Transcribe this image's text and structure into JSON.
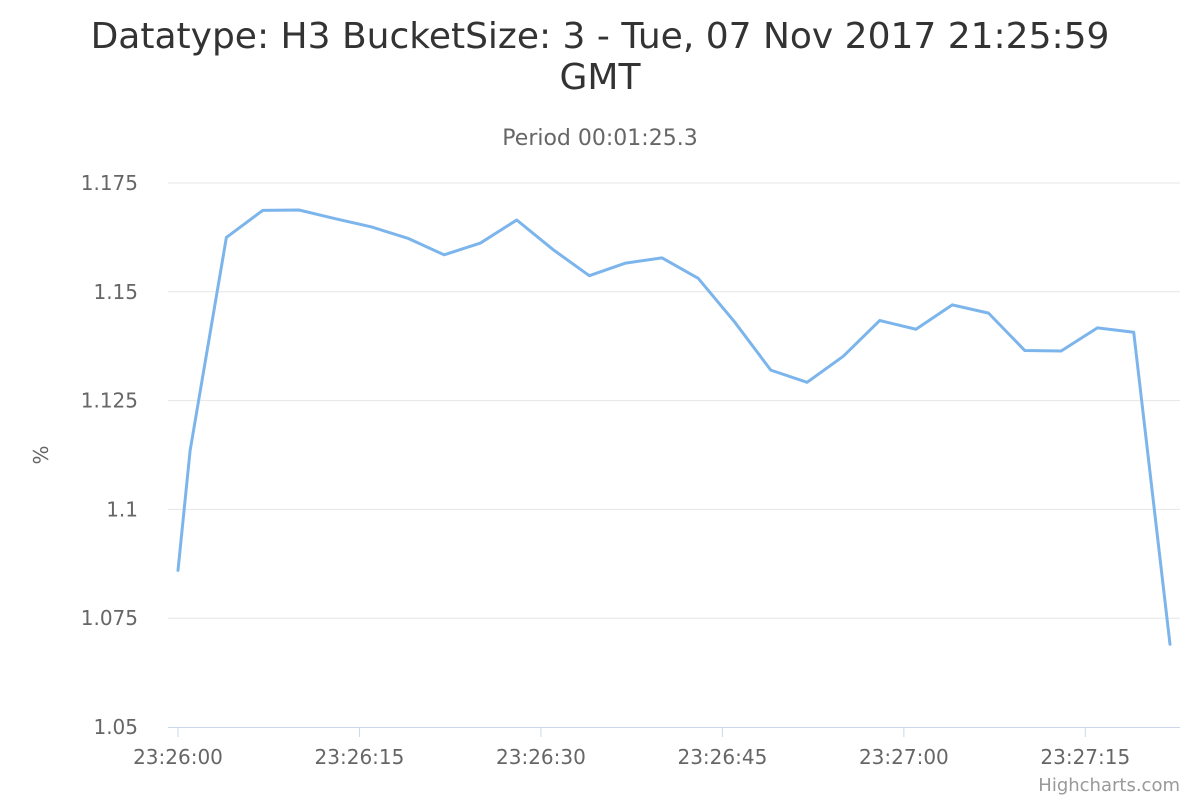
{
  "chart_data": {
    "type": "line",
    "title_lines": [
      "Datatype: H3 BucketSize: 3 - Tue, 07 Nov 2017 21:25:59",
      "GMT"
    ],
    "subtitle": "Period 00:01:25.3",
    "ylabel": "%",
    "xlabel": "",
    "ylim": [
      1.05,
      1.175
    ],
    "xlim": [
      "23:26:00",
      "23:27:22"
    ],
    "y_ticks": [
      "1.05",
      "1.075",
      "1.1",
      "1.125",
      "1.15",
      "1.175"
    ],
    "x_ticks": [
      "23:26:00",
      "23:26:15",
      "23:26:30",
      "23:26:45",
      "23:27:00",
      "23:27:15"
    ],
    "grid": true,
    "legend": "none",
    "series": [
      {
        "color": "#7cb5ec",
        "x": [
          "23:26:00",
          "23:26:01",
          "23:26:04",
          "23:26:07",
          "23:26:10",
          "23:26:13",
          "23:26:16",
          "23:26:19",
          "23:26:22",
          "23:26:25",
          "23:26:28",
          "23:26:31",
          "23:26:34",
          "23:26:37",
          "23:26:40",
          "23:26:43",
          "23:26:46",
          "23:26:49",
          "23:26:52",
          "23:26:55",
          "23:26:58",
          "23:27:01",
          "23:27:04",
          "23:27:07",
          "23:27:10",
          "23:27:13",
          "23:27:16",
          "23:27:19",
          "23:27:22"
        ],
        "y": [
          1.086,
          1.1135,
          1.1625,
          1.1687,
          1.1688,
          1.1668,
          1.1649,
          1.1623,
          1.1585,
          1.1612,
          1.1665,
          1.1597,
          1.1537,
          1.1566,
          1.1578,
          1.1531,
          1.1431,
          1.132,
          1.1292,
          1.1352,
          1.1434,
          1.1414,
          1.147,
          1.1451,
          1.1365,
          1.1364,
          1.1417,
          1.1407,
          1.069
        ]
      }
    ]
  },
  "credits": "Highcharts.com"
}
